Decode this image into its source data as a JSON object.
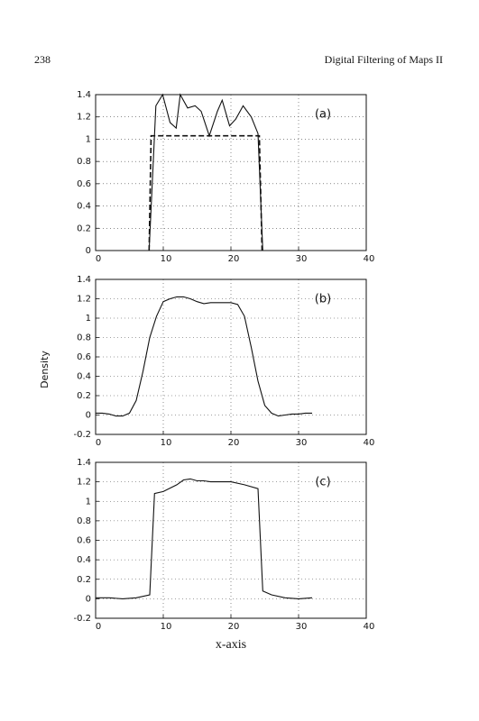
{
  "page": {
    "number": "238",
    "running_title": "Digital Filtering of Maps II",
    "ylabel": "Density",
    "xlabel": "x-axis"
  },
  "chart_data": [
    {
      "type": "line",
      "annotation": "(a)",
      "xlim": [
        0,
        40
      ],
      "xticks": [
        0,
        10,
        20,
        30,
        40
      ],
      "ylim": [
        0,
        1.4
      ],
      "yticks": [
        0,
        0.2,
        0.4,
        0.6,
        0.8,
        1,
        1.2,
        1.4
      ],
      "grid": true,
      "series": [
        {
          "color": "#111111",
          "dashed": false,
          "x": [
            7.9,
            8.9,
            9.9,
            11,
            11.9,
            12.5,
            13.6,
            14.7,
            15.6,
            16.8,
            18,
            18.7,
            19.8,
            20.7,
            21.8,
            23,
            24,
            24.7
          ],
          "values": [
            0,
            1.3,
            1.4,
            1.15,
            1.1,
            1.4,
            1.28,
            1.3,
            1.25,
            1.03,
            1.25,
            1.35,
            1.12,
            1.18,
            1.3,
            1.2,
            1.05,
            0
          ]
        },
        {
          "color": "#111111",
          "dashed": true,
          "x": [
            7.9,
            8.2,
            24.2,
            24.6
          ],
          "values": [
            0,
            1.03,
            1.03,
            0
          ]
        }
      ]
    },
    {
      "type": "line",
      "annotation": "(b)",
      "xlim": [
        0,
        40
      ],
      "xticks": [
        0,
        10,
        20,
        30,
        40
      ],
      "ylim": [
        -0.2,
        1.4
      ],
      "yticks": [
        -0.2,
        0,
        0.2,
        0.4,
        0.6,
        0.8,
        1,
        1.2,
        1.4
      ],
      "grid": true,
      "series": [
        {
          "color": "#111111",
          "dashed": false,
          "x": [
            0,
            1,
            2,
            3,
            4,
            5,
            6,
            7,
            8,
            9,
            10,
            11,
            12,
            13,
            14,
            15,
            16,
            17,
            18,
            19,
            20,
            21,
            22,
            23,
            24,
            25,
            26,
            27,
            28,
            29,
            30,
            31,
            32
          ],
          "values": [
            0.02,
            0.02,
            0.01,
            -0.01,
            -0.01,
            0.02,
            0.15,
            0.45,
            0.8,
            1.02,
            1.17,
            1.2,
            1.22,
            1.22,
            1.2,
            1.17,
            1.15,
            1.16,
            1.16,
            1.16,
            1.16,
            1.14,
            1.02,
            0.7,
            0.35,
            0.1,
            0.02,
            -0.01,
            0,
            0.01,
            0.01,
            0.02,
            0.02
          ]
        }
      ]
    },
    {
      "type": "line",
      "annotation": "(c)",
      "xlim": [
        0,
        40
      ],
      "xticks": [
        0,
        10,
        20,
        30,
        40
      ],
      "ylim": [
        -0.2,
        1.4
      ],
      "yticks": [
        -0.2,
        0,
        0.2,
        0.4,
        0.6,
        0.8,
        1,
        1.2,
        1.4
      ],
      "grid": true,
      "series": [
        {
          "color": "#111111",
          "dashed": false,
          "x": [
            0,
            2,
            4,
            6,
            8,
            8.7,
            10,
            12,
            13,
            14,
            15,
            16,
            17,
            18,
            20,
            22,
            24,
            24.7,
            26,
            28,
            30,
            32
          ],
          "values": [
            0.01,
            0.01,
            0,
            0.01,
            0.04,
            1.08,
            1.1,
            1.17,
            1.22,
            1.23,
            1.21,
            1.21,
            1.2,
            1.2,
            1.2,
            1.17,
            1.13,
            0.08,
            0.04,
            0.01,
            0,
            0.01
          ]
        }
      ]
    }
  ]
}
